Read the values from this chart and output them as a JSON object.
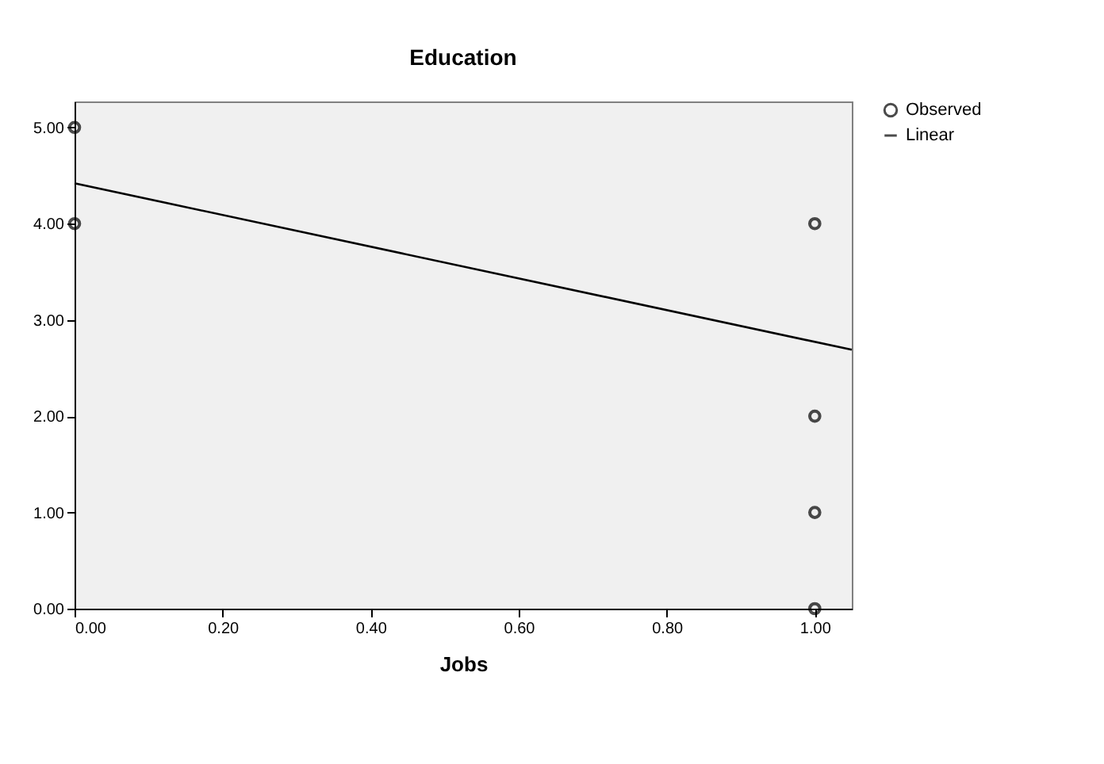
{
  "chart_data": {
    "type": "scatter",
    "title": "Education",
    "xlabel": "Jobs",
    "xlim": [
      0,
      1.05
    ],
    "ylim": [
      0,
      5.27
    ],
    "xticks": [
      {
        "value": 0,
        "label": "0.00"
      },
      {
        "value": 0.2,
        "label": "0.20"
      },
      {
        "value": 0.4,
        "label": "0.40"
      },
      {
        "value": 0.6,
        "label": "0.60"
      },
      {
        "value": 0.8,
        "label": "0.80"
      },
      {
        "value": 1,
        "label": "1.00"
      }
    ],
    "yticks": [
      {
        "value": 0,
        "label": "0.00"
      },
      {
        "value": 1,
        "label": "1.00"
      },
      {
        "value": 2,
        "label": "2.00"
      },
      {
        "value": 3,
        "label": "3.00"
      },
      {
        "value": 4,
        "label": "4.00"
      },
      {
        "value": 5,
        "label": "5.00"
      }
    ],
    "grid": false,
    "legend": "top right",
    "series": [
      {
        "name": "Observed",
        "marker": "circle",
        "color": "#000000",
        "x": [
          0,
          0,
          1,
          1,
          1,
          1
        ],
        "values": [
          5,
          4,
          4,
          2,
          1,
          0
        ]
      },
      {
        "name": "Linear",
        "type": "line",
        "marker": "none",
        "color": "#000000",
        "line_style": "solid",
        "x": [
          0,
          1.05
        ],
        "values": [
          4.42,
          2.69
        ]
      }
    ]
  }
}
